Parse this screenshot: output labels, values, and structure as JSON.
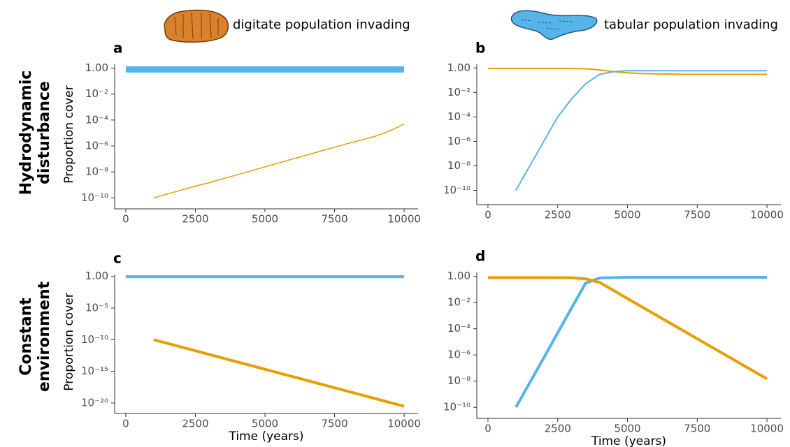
{
  "column_labels": [
    "digitate population invading",
    "tabular population invading"
  ],
  "row_labels": [
    [
      "Hydrodynamic",
      "disturbance"
    ],
    [
      "Constant",
      "environment"
    ]
  ],
  "chart_data": [
    {
      "type": "line",
      "label": "a",
      "y_label": "Proportion cover",
      "log_y": true,
      "x": [
        0,
        500,
        1000,
        1500,
        2000,
        2500,
        3000,
        3500,
        4000,
        4500,
        5000,
        5500,
        6000,
        6500,
        7000,
        7500,
        8000,
        8500,
        9000,
        9500,
        10000
      ],
      "series": [
        {
          "color": "#56B4E9",
          "width": 9,
          "values": [
            0.8,
            0.8,
            0.8,
            0.8,
            0.8,
            0.8,
            0.8,
            0.8,
            0.8,
            0.8,
            0.8,
            0.8,
            0.8,
            0.8,
            0.8,
            0.8,
            0.8,
            0.8,
            0.8,
            0.8,
            0.8
          ]
        },
        {
          "color": "#E69F00",
          "width": 1.5,
          "values": [
            null,
            null,
            1e-10,
            2e-10,
            4e-10,
            8e-10,
            1.5e-09,
            3e-09,
            6e-09,
            1.2e-08,
            2.5e-08,
            5e-08,
            1e-07,
            2e-07,
            4e-07,
            8e-07,
            1.6e-06,
            3e-06,
            6e-06,
            1.5e-05,
            5e-05
          ]
        }
      ],
      "xlim": [
        -400,
        10500
      ],
      "ylim": [
        3e-11,
        2
      ],
      "xticks": [
        0,
        2500,
        5000,
        7500,
        10000
      ],
      "yticks": [
        {
          "value": 1,
          "label": "1.00"
        },
        {
          "value": 0.01,
          "label": "10⁻²"
        },
        {
          "value": 0.0001,
          "label": "10⁻⁴"
        },
        {
          "value": 1e-06,
          "label": "10⁻⁶"
        },
        {
          "value": 1e-08,
          "label": "10⁻⁸"
        },
        {
          "value": 1e-10,
          "label": "10⁻¹⁰"
        }
      ]
    },
    {
      "type": "line",
      "label": "b",
      "log_y": true,
      "x": [
        0,
        500,
        1000,
        1500,
        2000,
        2500,
        3000,
        3500,
        4000,
        4500,
        5000,
        5500,
        6000,
        6500,
        7000,
        7500,
        8000,
        8500,
        9000,
        9500,
        10000
      ],
      "series": [
        {
          "color": "#E69F00",
          "width": 2,
          "values": [
            0.9,
            0.9,
            0.9,
            0.9,
            0.9,
            0.9,
            0.9,
            0.85,
            0.7,
            0.5,
            0.4,
            0.35,
            0.33,
            0.32,
            0.3,
            0.3,
            0.3,
            0.3,
            0.3,
            0.3,
            0.3
          ]
        },
        {
          "color": "#56B4E9",
          "width": 2,
          "values": [
            null,
            null,
            1e-10,
            1e-08,
            1e-06,
            0.0001,
            0.003,
            0.05,
            0.3,
            0.5,
            0.6,
            0.6,
            0.6,
            0.6,
            0.6,
            0.6,
            0.6,
            0.6,
            0.6,
            0.6,
            0.6
          ]
        }
      ],
      "xlim": [
        -400,
        10500
      ],
      "ylim": [
        1.5e-11,
        2
      ],
      "xticks": [
        0,
        2500,
        5000,
        7500,
        10000
      ],
      "yticks": [
        {
          "value": 1,
          "label": "1.00"
        },
        {
          "value": 0.01,
          "label": "10⁻²"
        },
        {
          "value": 0.0001,
          "label": "10⁻⁴"
        },
        {
          "value": 1e-06,
          "label": "10⁻⁶"
        },
        {
          "value": 1e-08,
          "label": "10⁻⁸"
        },
        {
          "value": 1e-10,
          "label": "10⁻¹⁰"
        }
      ]
    },
    {
      "type": "line",
      "label": "c",
      "y_label": "Proportion cover",
      "x_label": "Time (years)",
      "log_y": true,
      "x": [
        0,
        1000,
        10000
      ],
      "series": [
        {
          "color": "#56B4E9",
          "width": 4,
          "values": [
            0.9,
            0.9,
            0.9
          ]
        },
        {
          "color": "#E69F00",
          "width": 4,
          "values": [
            null,
            1e-10,
            3e-21
          ]
        }
      ],
      "xlim": [
        -400,
        10500
      ],
      "ylim": [
        1e-21,
        2
      ],
      "xticks": [
        0,
        2500,
        5000,
        7500,
        10000
      ],
      "yticks": [
        {
          "value": 1,
          "label": "1.00"
        },
        {
          "value": 1e-05,
          "label": "10⁻⁵"
        },
        {
          "value": 1e-10,
          "label": "10⁻¹⁰"
        },
        {
          "value": 1e-15,
          "label": "10⁻¹⁵"
        },
        {
          "value": 1e-20,
          "label": "10⁻²⁰"
        }
      ]
    },
    {
      "type": "line",
      "label": "d",
      "x_label": "Time (years)",
      "log_y": true,
      "x": [
        0,
        1000,
        2000,
        3000,
        3500,
        4000,
        5000,
        10000
      ],
      "series": [
        {
          "color": "#56B4E9",
          "width": 4,
          "values": [
            null,
            1e-10,
            6e-07,
            0.004,
            0.3,
            0.75,
            0.85,
            0.85
          ]
        },
        {
          "color": "#E69F00",
          "width": 4,
          "values": [
            0.8,
            0.8,
            0.8,
            0.78,
            0.65,
            0.35,
            0.02,
            1.5e-08
          ]
        }
      ],
      "xlim": [
        -400,
        10500
      ],
      "ylim": [
        3e-11,
        2
      ],
      "xticks": [
        0,
        2500,
        5000,
        7500,
        10000
      ],
      "yticks": [
        {
          "value": 1,
          "label": "1.00"
        },
        {
          "value": 0.01,
          "label": "10⁻²"
        },
        {
          "value": 0.0001,
          "label": "10⁻⁴"
        },
        {
          "value": 1e-06,
          "label": "10⁻⁶"
        },
        {
          "value": 1e-08,
          "label": "10⁻⁸"
        },
        {
          "value": 1e-10,
          "label": "10⁻¹⁰"
        }
      ]
    }
  ]
}
